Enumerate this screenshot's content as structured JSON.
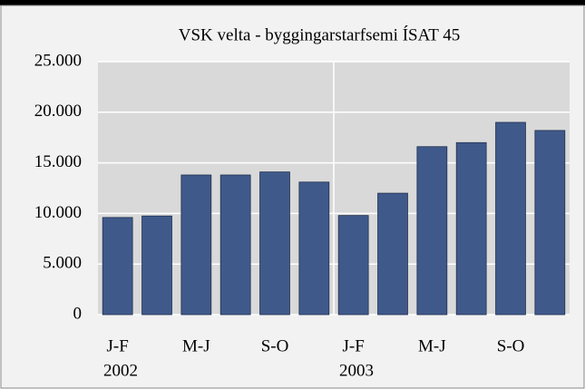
{
  "chart_data": {
    "type": "bar",
    "title": "VSK velta - byggingarstarfsemi ÍSAT 45",
    "categories": [
      "J-F",
      null,
      "M-J",
      null,
      "S-O",
      null,
      "J-F",
      null,
      "M-J",
      null,
      "S-O",
      null
    ],
    "groups": [
      "2002",
      "2003"
    ],
    "values": [
      9600,
      9750,
      13800,
      13800,
      14100,
      13100,
      9800,
      12000,
      16600,
      17000,
      19000,
      18200
    ],
    "color": "#3f5a8a",
    "ylim": [
      0,
      25000
    ],
    "yticks": [
      0,
      {
        "value": 5000,
        "label": "5.000"
      },
      {
        "value": 10000,
        "label": "10.000"
      },
      {
        "value": 15000,
        "label": "15.000"
      },
      {
        "value": 20000,
        "label": "20.000"
      },
      {
        "value": 25000,
        "label": "25.000"
      }
    ],
    "grid": true
  }
}
